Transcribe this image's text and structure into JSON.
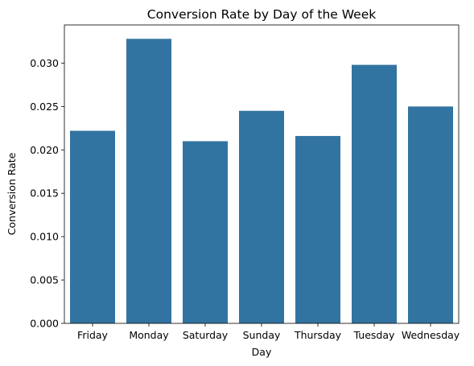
{
  "chart_data": {
    "type": "bar",
    "title": "Conversion Rate by Day of the Week",
    "xlabel": "Day",
    "ylabel": "Conversion Rate",
    "categories": [
      "Friday",
      "Monday",
      "Saturday",
      "Sunday",
      "Thursday",
      "Tuesday",
      "Wednesday"
    ],
    "values": [
      0.0222,
      0.0328,
      0.021,
      0.0245,
      0.0216,
      0.0298,
      0.025
    ],
    "ylim": [
      0,
      0.0344
    ],
    "yticks": [
      0.0,
      0.005,
      0.01,
      0.015,
      0.02,
      0.025,
      0.03
    ],
    "ytick_labels": [
      "0.000",
      "0.005",
      "0.010",
      "0.015",
      "0.020",
      "0.025",
      "0.030"
    ],
    "bar_color": "#3274a1",
    "grid": false,
    "legend": "none"
  }
}
